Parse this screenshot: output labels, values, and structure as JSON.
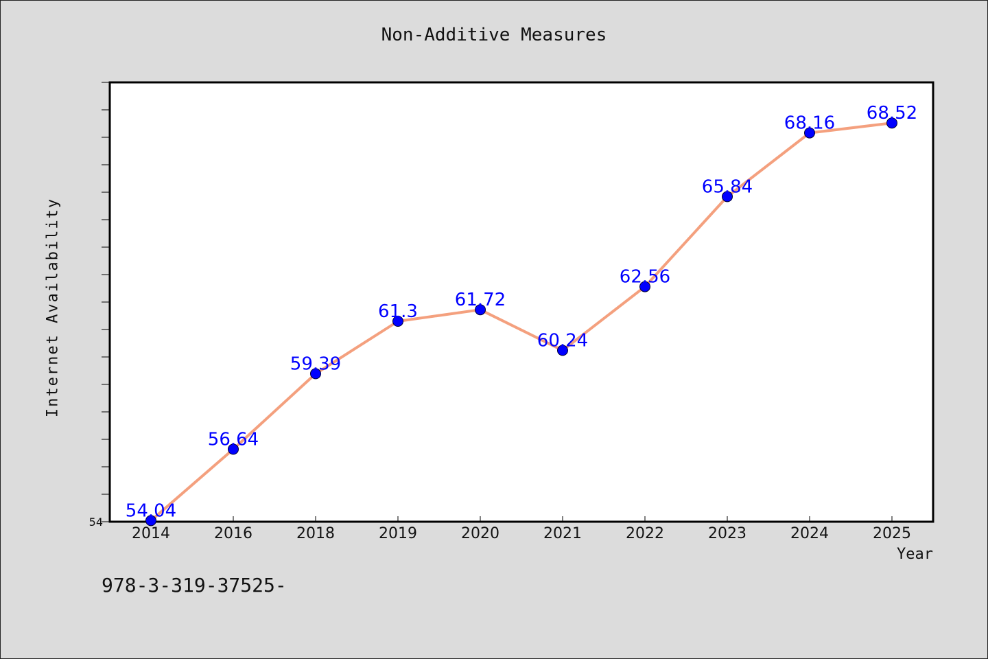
{
  "chart_data": {
    "type": "line",
    "title": "Non-Additive Measures",
    "xlabel": "Year",
    "ylabel": "Internet Availability",
    "categories": [
      "2014",
      "2016",
      "2018",
      "2019",
      "2020",
      "2021",
      "2022",
      "2023",
      "2024",
      "2025"
    ],
    "series": [
      {
        "values": [
          54.04,
          56.64,
          59.39,
          61.3,
          61.72,
          60.24,
          62.56,
          65.84,
          68.16,
          68.52
        ]
      }
    ],
    "data_labels": [
      "54.04",
      "56.64",
      "59.39",
      "61.3",
      "61.72",
      "60.24",
      "62.56",
      "65.84",
      "68.16",
      "68.52"
    ],
    "ylim": [
      54,
      70
    ],
    "y_tick_labels": [
      "54"
    ],
    "grid": false,
    "line_color": "#f4a07e",
    "marker_color": "#0000ff",
    "label_color": "#0000ff"
  },
  "footnote": "978-3-319-37525-"
}
